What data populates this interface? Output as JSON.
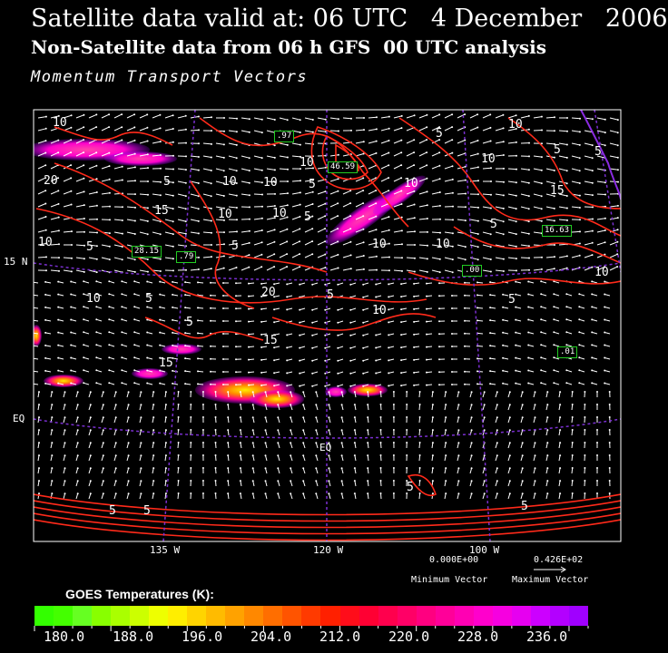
{
  "header": {
    "title_line1": "Satellite data valid at: 06 UTC   4 December   2006",
    "title_line2": "Non-Satellite data from 06 h GFS  00 UTC analysis",
    "title_line3": "Momentum Transport Vectors"
  },
  "map": {
    "lat_labels": [
      "15 N",
      "EQ"
    ],
    "lon_labels": [
      "135 W",
      "120 W",
      "100 W"
    ],
    "equator_label": "EQ",
    "contour_labels": [
      "10",
      "20",
      "5",
      "10",
      "15",
      "10",
      "5",
      "10",
      "5",
      "10",
      "5",
      "20",
      "5",
      "10",
      "5",
      "15",
      "15",
      "10",
      "10",
      "5",
      "10",
      "10",
      "10",
      "5",
      "15",
      "5",
      "10",
      "5",
      "10",
      "5",
      "10",
      "5",
      "5",
      "10",
      "5",
      "5",
      "5",
      "5"
    ],
    "boxed_values": [
      ".97",
      "46.59",
      "28.15",
      ".79",
      ".00",
      "16.63",
      ".01"
    ],
    "colors": {
      "background": "#000000",
      "contour": "#ff2a1a",
      "grid": "#7a2fd0",
      "vector": "#ffffff",
      "boxed_text_border": "#22cc22",
      "coast": "#8a2be2"
    }
  },
  "vector_legend": {
    "min_value": "0.000E+00",
    "max_value": "0.426E+02",
    "min_caption": "Minimum Vector",
    "max_caption": "Maximum Vector"
  },
  "legend": {
    "title": "GOES Temperatures (K):",
    "tick_labels": [
      "180.0",
      "188.0",
      "196.0",
      "204.0",
      "212.0",
      "220.0",
      "228.0",
      "236.0"
    ],
    "colors": [
      "#33ff00",
      "#44ff00",
      "#66ff22",
      "#88ff00",
      "#aaff00",
      "#ccff00",
      "#eeff00",
      "#ffee00",
      "#ffd400",
      "#ffbb00",
      "#ffa200",
      "#ff8800",
      "#ff6e00",
      "#ff5400",
      "#ff3a00",
      "#ff2000",
      "#ff0d1a",
      "#ff0033",
      "#ff004d",
      "#ff0066",
      "#ff0080",
      "#ff0099",
      "#ff00b3",
      "#ff00cc",
      "#f600e0",
      "#e600f0",
      "#cc00ff",
      "#b300ff",
      "#a000ff"
    ]
  }
}
